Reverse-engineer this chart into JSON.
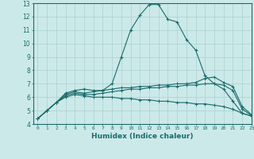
{
  "xlabel": "Humidex (Indice chaleur)",
  "ylabel": "",
  "xlim": [
    -0.5,
    23
  ],
  "ylim": [
    4,
    13
  ],
  "xticks": [
    0,
    1,
    2,
    3,
    4,
    5,
    6,
    7,
    8,
    9,
    10,
    11,
    12,
    13,
    14,
    15,
    16,
    17,
    18,
    19,
    20,
    21,
    22,
    23
  ],
  "yticks": [
    4,
    5,
    6,
    7,
    8,
    9,
    10,
    11,
    12,
    13
  ],
  "bg_color": "#cce9e9",
  "grid_color": "#aad0d0",
  "line_color": "#1a6b6b",
  "line1_x": [
    0,
    1,
    2,
    3,
    4,
    5,
    6,
    7,
    8,
    9,
    10,
    11,
    12,
    13,
    14,
    15,
    16,
    17,
    18,
    19,
    20,
    21,
    22,
    23
  ],
  "line1_y": [
    4.4,
    5.0,
    5.6,
    6.3,
    6.5,
    6.6,
    6.5,
    6.5,
    7.0,
    9.0,
    11.0,
    12.1,
    12.9,
    12.9,
    11.8,
    11.6,
    10.3,
    9.5,
    7.6,
    7.0,
    6.6,
    5.7,
    4.8,
    4.6
  ],
  "line2_x": [
    0,
    1,
    2,
    3,
    4,
    5,
    6,
    7,
    8,
    9,
    10,
    11,
    12,
    13,
    14,
    15,
    16,
    17,
    18,
    19,
    20,
    21,
    22,
    23
  ],
  "line2_y": [
    4.4,
    5.0,
    5.6,
    6.2,
    6.4,
    6.3,
    6.4,
    6.5,
    6.6,
    6.7,
    6.7,
    6.8,
    6.8,
    6.9,
    6.9,
    7.0,
    7.0,
    7.1,
    7.4,
    7.5,
    7.1,
    6.8,
    5.3,
    4.7
  ],
  "line3_x": [
    0,
    1,
    2,
    3,
    4,
    5,
    6,
    7,
    8,
    9,
    10,
    11,
    12,
    13,
    14,
    15,
    16,
    17,
    18,
    19,
    20,
    21,
    22,
    23
  ],
  "line3_y": [
    4.4,
    5.0,
    5.6,
    6.1,
    6.3,
    6.2,
    6.2,
    6.3,
    6.4,
    6.5,
    6.6,
    6.6,
    6.7,
    6.7,
    6.8,
    6.8,
    6.9,
    6.9,
    7.0,
    7.0,
    6.9,
    6.5,
    5.1,
    4.65
  ],
  "line4_x": [
    0,
    1,
    2,
    3,
    4,
    5,
    6,
    7,
    8,
    9,
    10,
    11,
    12,
    13,
    14,
    15,
    16,
    17,
    18,
    19,
    20,
    21,
    22,
    23
  ],
  "line4_y": [
    4.4,
    5.0,
    5.6,
    6.0,
    6.2,
    6.1,
    6.0,
    6.0,
    6.0,
    5.9,
    5.9,
    5.8,
    5.8,
    5.7,
    5.7,
    5.6,
    5.6,
    5.5,
    5.5,
    5.4,
    5.3,
    5.1,
    4.8,
    4.6
  ]
}
